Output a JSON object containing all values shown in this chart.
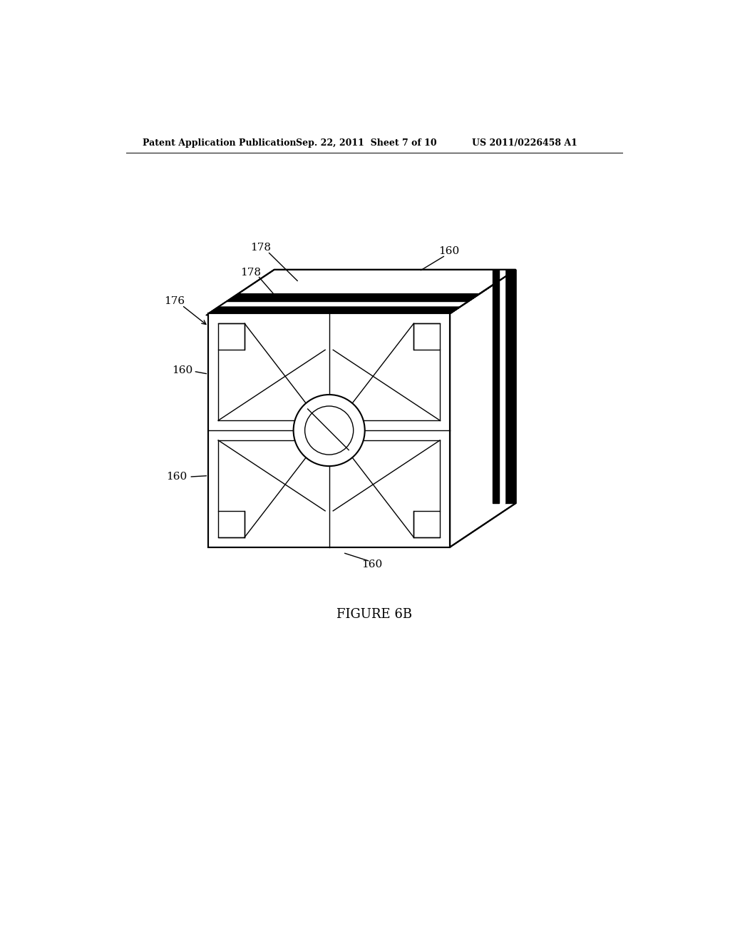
{
  "title": "FIGURE 6B",
  "header_left": "Patent Application Publication",
  "header_mid": "Sep. 22, 2011  Sheet 7 of 10",
  "header_right": "US 2011/0226458 A1",
  "bg_color": "#ffffff",
  "line_color": "#000000",
  "labels": {
    "178_top": "178",
    "178_bot": "178",
    "176": "176",
    "160_top": "160",
    "160_left_top": "160",
    "160_left_bot": "160",
    "160_bot": "160"
  },
  "figure_label": "FIGURE 6B",
  "fl": 210,
  "fr": 650,
  "ft": 365,
  "fb": 790,
  "ox": 120,
  "oy": 80
}
